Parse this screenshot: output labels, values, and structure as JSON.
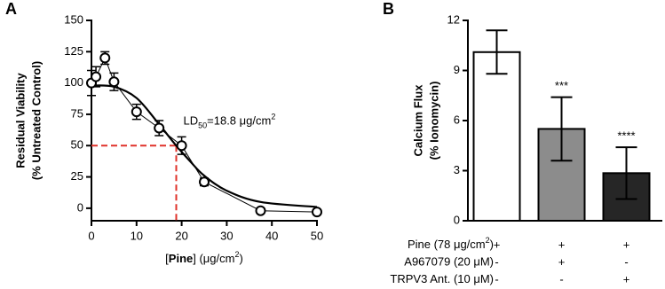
{
  "chart_data": [
    {
      "type": "line",
      "panel_label": "A",
      "ylabel": [
        "Residual Viability",
        "(% Untreated Control)"
      ],
      "xlabel": [
        "[",
        "Pine",
        "] (μg/cm",
        "2",
        ")"
      ],
      "xlim": [
        0,
        50
      ],
      "xticks": [
        0,
        10,
        20,
        30,
        40,
        50
      ],
      "ylim": [
        -10,
        150
      ],
      "yticks": [
        0,
        25,
        50,
        75,
        100,
        125,
        150
      ],
      "series": [
        {
          "color": "#000000",
          "x": [
            0,
            1,
            3,
            5,
            10,
            15,
            20,
            25,
            37.5,
            50
          ],
          "values": [
            100,
            105,
            120,
            101,
            77,
            64,
            50,
            21,
            -2,
            -3
          ],
          "errors": [
            10,
            8,
            5,
            7,
            6,
            6,
            7,
            3,
            2,
            1
          ]
        },
        {
          "color": "#000000",
          "x": [
            0,
            5,
            10,
            15,
            18.8,
            22,
            25,
            30,
            37.5,
            50
          ],
          "values": [
            98,
            97,
            88,
            67,
            50,
            37,
            26,
            14,
            5,
            1
          ]
        }
      ],
      "reference": {
        "x": 18.8,
        "y": 50,
        "color": "#e0322a"
      },
      "annotation": [
        "LD",
        "50",
        "=18.8 μg/cm",
        "2"
      ]
    },
    {
      "type": "bar",
      "panel_label": "B",
      "ylabel": [
        "Calcium Flux",
        "(% Ionomycin)"
      ],
      "categories": [
        null,
        null,
        null
      ],
      "values": [
        10.1,
        5.5,
        2.85
      ],
      "errors": [
        1.3,
        1.9,
        1.55
      ],
      "colors": [
        "#ffffff",
        "#8c8c8c",
        "#262626"
      ],
      "significance": [
        null,
        "***",
        "****"
      ],
      "ylim": [
        0,
        12
      ],
      "yticks": [
        0,
        3,
        6,
        9,
        12
      ],
      "conditions": [
        {
          "label": [
            "Pine (78 μg/cm",
            "2",
            ")"
          ],
          "marks": [
            "+",
            "+",
            "+"
          ]
        },
        {
          "label": [
            "A967079 (20 μM)"
          ],
          "marks": [
            "-",
            "+",
            "-"
          ]
        },
        {
          "label": [
            "TRPV3 Ant. (10 μM)"
          ],
          "marks": [
            "-",
            "-",
            "+"
          ]
        }
      ]
    }
  ]
}
